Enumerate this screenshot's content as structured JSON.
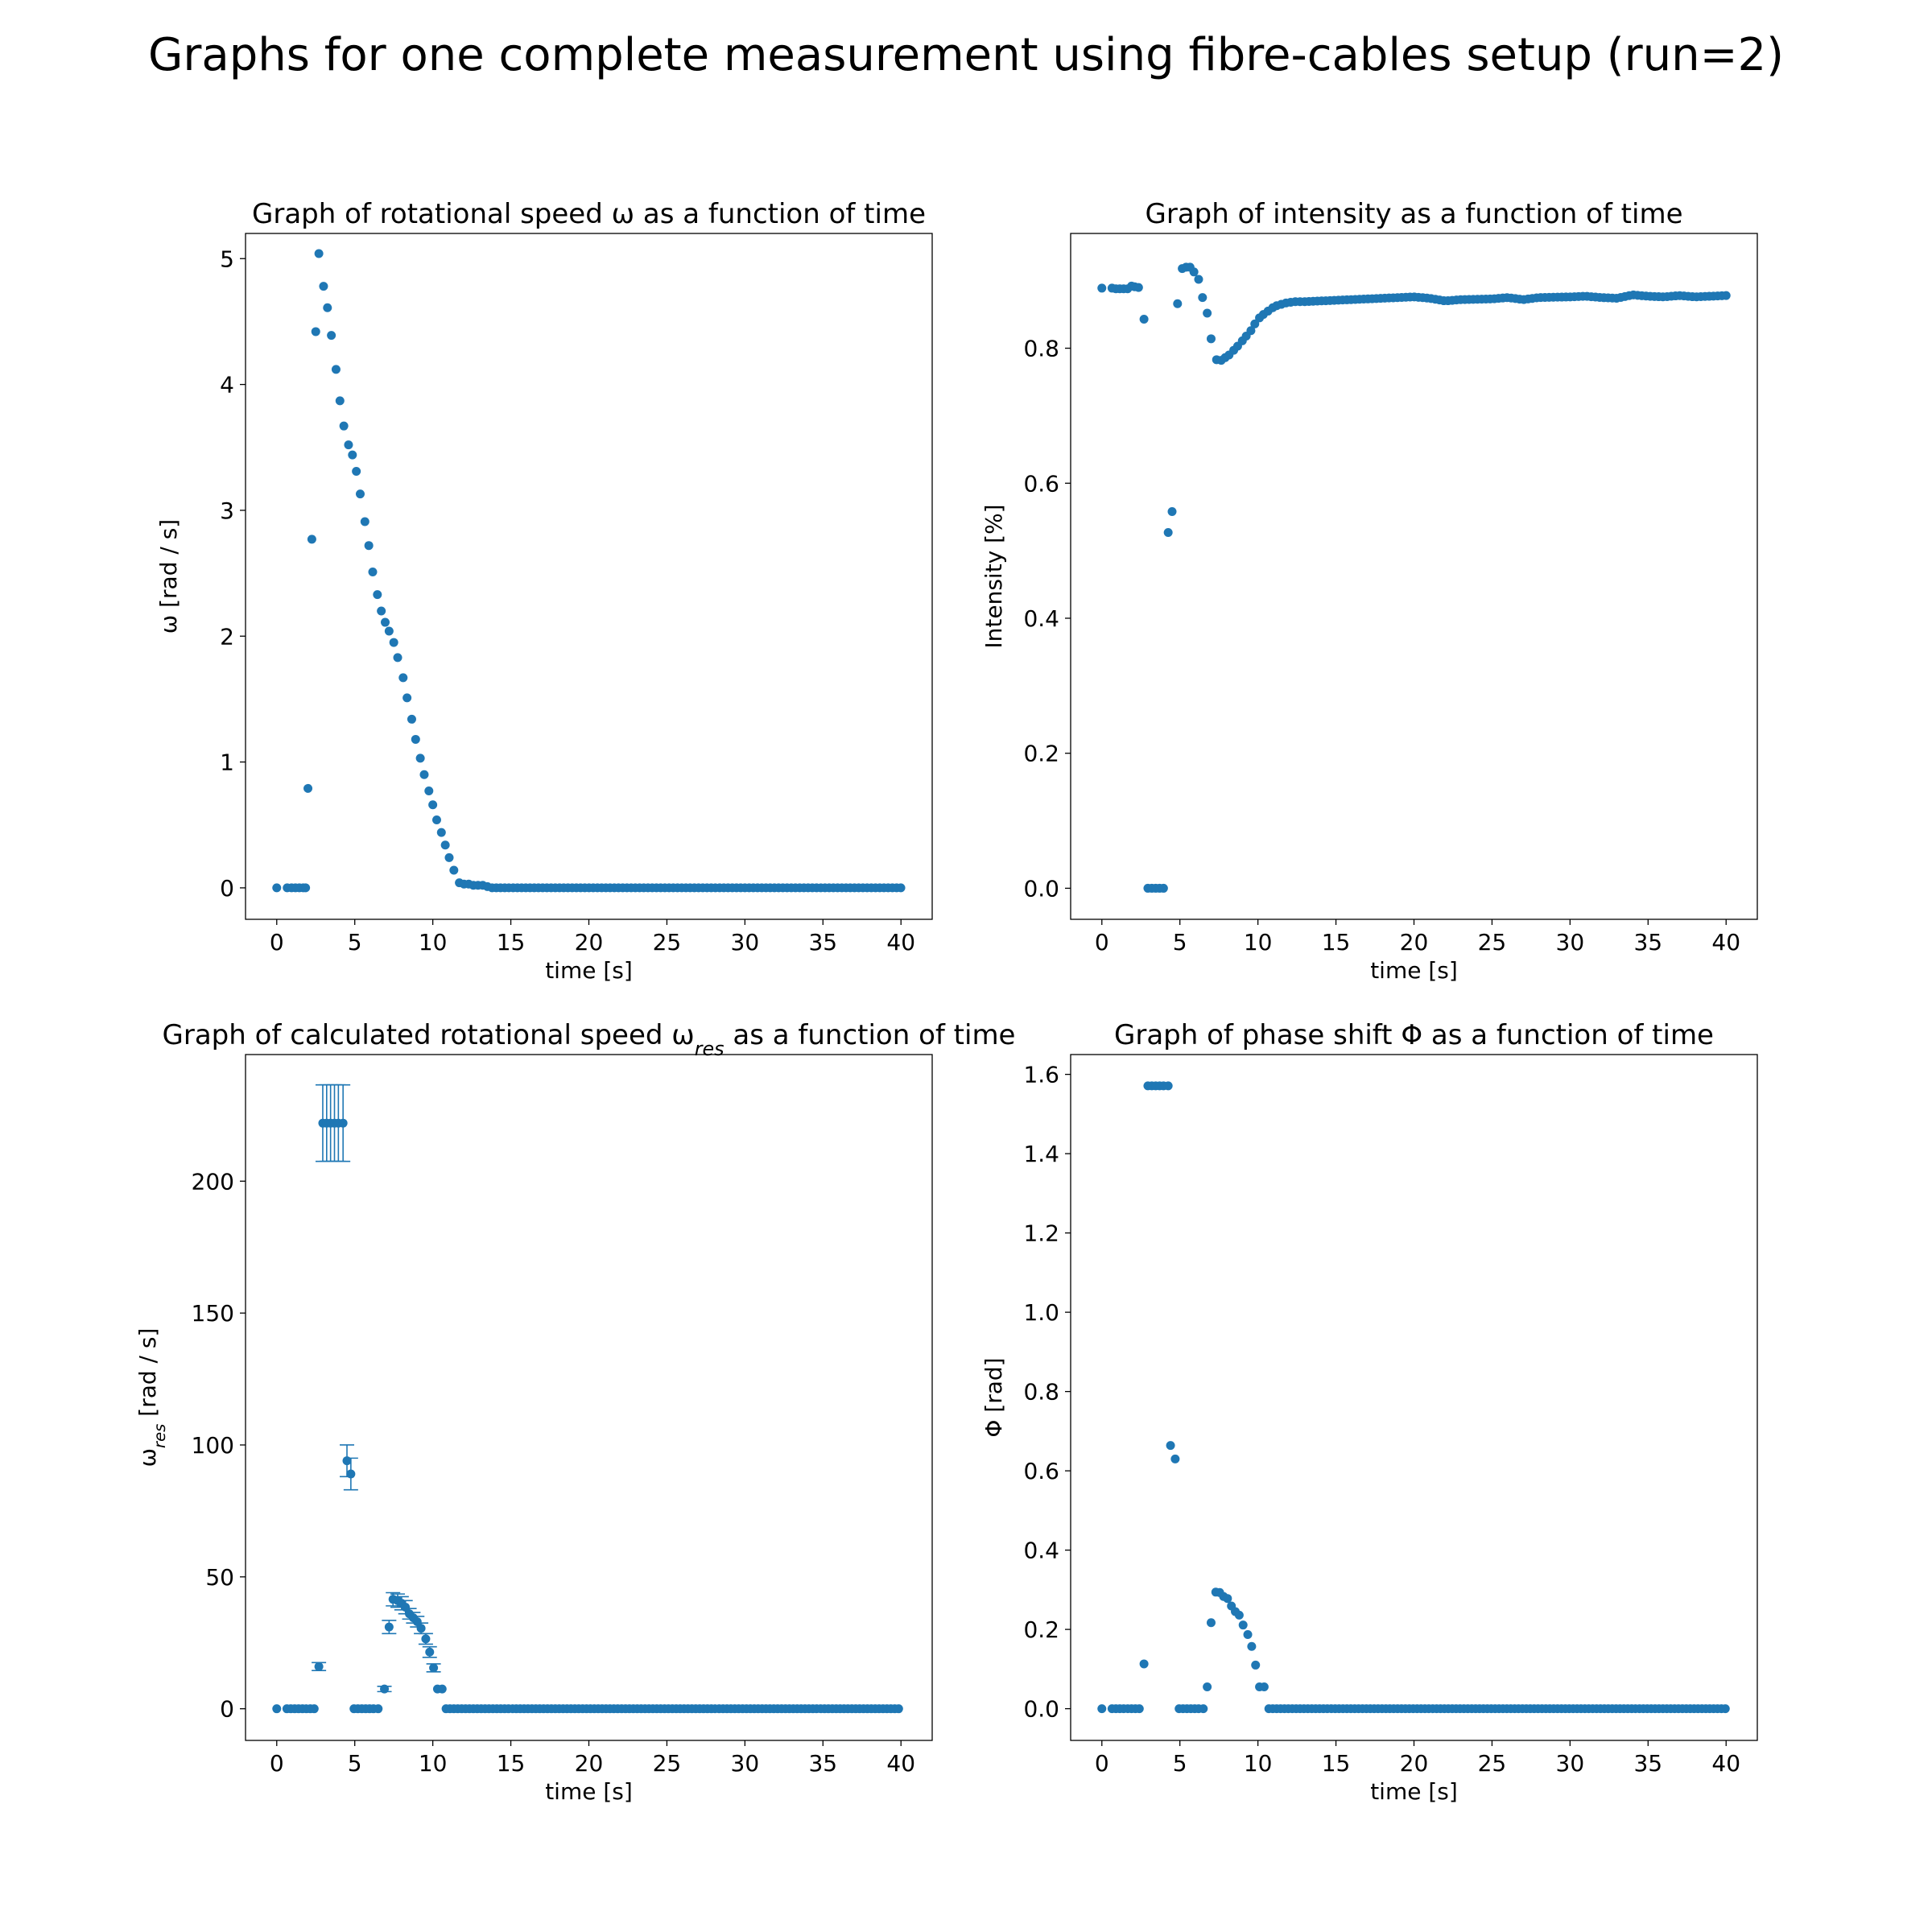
{
  "figure": {
    "suptitle": "Graphs for one complete measurement using fibre-cables setup (run=2)",
    "marker_color": "#1f77b4"
  },
  "chart_data": [
    {
      "type": "scatter",
      "title": "Graph of rotational speed ω as a function of time",
      "xlabel": "time [s]",
      "ylabel": "ω [rad / s]",
      "xlim": [
        -2,
        42
      ],
      "ylim": [
        -0.25,
        5.2
      ],
      "xticks": [
        0,
        5,
        10,
        15,
        20,
        25,
        30,
        35,
        40
      ],
      "yticks": [
        0,
        1,
        2,
        3,
        4,
        5
      ],
      "points": [
        [
          0.0,
          0.0
        ],
        [
          0.67,
          0.0
        ],
        [
          0.95,
          0.0
        ],
        [
          1.2,
          0.0
        ],
        [
          1.45,
          0.0
        ],
        [
          1.7,
          0.0
        ],
        [
          1.85,
          0.0
        ],
        [
          2.0,
          0.79
        ],
        [
          2.25,
          2.77
        ],
        [
          2.5,
          4.42
        ],
        [
          2.7,
          5.04
        ],
        [
          3.0,
          4.78
        ],
        [
          3.25,
          4.61
        ],
        [
          3.5,
          4.39
        ],
        [
          3.8,
          4.12
        ],
        [
          4.05,
          3.87
        ],
        [
          4.3,
          3.67
        ],
        [
          4.6,
          3.52
        ],
        [
          4.85,
          3.44
        ],
        [
          5.1,
          3.31
        ],
        [
          5.35,
          3.13
        ],
        [
          5.65,
          2.91
        ],
        [
          5.9,
          2.72
        ],
        [
          6.15,
          2.51
        ],
        [
          6.45,
          2.33
        ],
        [
          6.7,
          2.2
        ],
        [
          6.95,
          2.11
        ],
        [
          7.2,
          2.04
        ],
        [
          7.5,
          1.95
        ],
        [
          7.75,
          1.83
        ],
        [
          8.1,
          1.67
        ],
        [
          8.35,
          1.51
        ],
        [
          8.65,
          1.34
        ],
        [
          8.9,
          1.18
        ],
        [
          9.2,
          1.03
        ],
        [
          9.45,
          0.9
        ],
        [
          9.75,
          0.77
        ],
        [
          10.0,
          0.66
        ],
        [
          10.25,
          0.54
        ],
        [
          10.55,
          0.44
        ],
        [
          10.8,
          0.34
        ],
        [
          11.05,
          0.24
        ],
        [
          11.35,
          0.14
        ],
        [
          11.7,
          0.04
        ],
        [
          12.0,
          0.03
        ],
        [
          12.3,
          0.03
        ],
        [
          12.6,
          0.02
        ],
        [
          12.9,
          0.02
        ],
        [
          13.2,
          0.02
        ],
        [
          13.5,
          0.01
        ]
      ],
      "tail": {
        "from": 13.8,
        "to": 40,
        "step": 0.27,
        "value": 0.0
      }
    },
    {
      "type": "scatter",
      "title": "Graph of intensity as a function of time",
      "xlabel": "time [s]",
      "ylabel": "Intensity [%]",
      "xlim": [
        -2,
        42
      ],
      "ylim": [
        -0.046,
        0.97
      ],
      "xticks": [
        0,
        5,
        10,
        15,
        20,
        25,
        30,
        35,
        40
      ],
      "yticks": [
        "0.0",
        "0.2",
        "0.4",
        "0.6",
        "0.8"
      ],
      "points": [
        [
          0.0,
          0.889
        ],
        [
          0.65,
          0.889
        ],
        [
          0.9,
          0.888
        ],
        [
          1.15,
          0.888
        ],
        [
          1.4,
          0.888
        ],
        [
          1.65,
          0.888
        ],
        [
          1.9,
          0.892
        ],
        [
          2.1,
          0.891
        ],
        [
          2.35,
          0.89
        ],
        [
          2.7,
          0.843
        ],
        [
          2.95,
          0.0
        ],
        [
          3.2,
          0.0
        ],
        [
          3.45,
          0.0
        ],
        [
          3.7,
          0.0
        ],
        [
          3.95,
          0.0
        ],
        [
          4.25,
          0.527
        ],
        [
          4.5,
          0.558
        ],
        [
          4.85,
          0.866
        ],
        [
          5.15,
          0.918
        ],
        [
          5.4,
          0.92
        ],
        [
          5.65,
          0.92
        ],
        [
          5.9,
          0.913
        ],
        [
          6.2,
          0.902
        ],
        [
          6.45,
          0.875
        ],
        [
          6.75,
          0.852
        ],
        [
          7.0,
          0.814
        ],
        [
          7.35,
          0.783
        ],
        [
          7.65,
          0.782
        ],
        [
          7.9,
          0.786
        ],
        [
          8.15,
          0.79
        ],
        [
          8.45,
          0.797
        ],
        [
          8.7,
          0.803
        ],
        [
          9.0,
          0.811
        ],
        [
          9.25,
          0.818
        ],
        [
          9.55,
          0.826
        ],
        [
          9.8,
          0.836
        ],
        [
          10.1,
          0.845
        ],
        [
          10.35,
          0.85
        ],
        [
          10.65,
          0.855
        ],
        [
          10.95,
          0.86
        ],
        [
          11.2,
          0.863
        ],
        [
          11.5,
          0.865
        ],
        [
          11.8,
          0.867
        ],
        [
          12.1,
          0.868
        ],
        [
          12.4,
          0.869
        ],
        [
          12.7,
          0.869
        ]
      ],
      "tail_points": [
        [
          13,
          0.869
        ],
        [
          15,
          0.871
        ],
        [
          17,
          0.873
        ],
        [
          19,
          0.875
        ],
        [
          20,
          0.876
        ],
        [
          21,
          0.874
        ],
        [
          22,
          0.87
        ],
        [
          23,
          0.872
        ],
        [
          25,
          0.873
        ],
        [
          26,
          0.875
        ],
        [
          27,
          0.872
        ],
        [
          28,
          0.875
        ],
        [
          30,
          0.876
        ],
        [
          31,
          0.877
        ],
        [
          32,
          0.875
        ],
        [
          33,
          0.874
        ],
        [
          34,
          0.879
        ],
        [
          35,
          0.877
        ],
        [
          36,
          0.876
        ],
        [
          37,
          0.878
        ],
        [
          38,
          0.876
        ],
        [
          39,
          0.877
        ],
        [
          40,
          0.878
        ]
      ],
      "tail_step": 0.27
    },
    {
      "type": "scatter",
      "title": "Graph of calculated rotational speed ω",
      "title_sub": "res",
      "title_rest": " as a function of time",
      "xlabel": "time [s]",
      "ylabel": "ω",
      "ylabel_sub": "res",
      "ylabel_rest": " [rad / s]",
      "xlim": [
        -2,
        42
      ],
      "ylim": [
        -12,
        248
      ],
      "xticks": [
        0,
        5,
        10,
        15,
        20,
        25,
        30,
        35,
        40
      ],
      "yticks": [
        0,
        50,
        100,
        150,
        200
      ],
      "points": [
        [
          0.0,
          0.0
        ],
        [
          0.65,
          0.0
        ],
        [
          0.9,
          0.0
        ],
        [
          1.15,
          0.0
        ],
        [
          1.4,
          0.0
        ],
        [
          1.65,
          0.0
        ],
        [
          1.9,
          0.0
        ],
        [
          2.15,
          0.0
        ],
        [
          2.4,
          0.0
        ],
        [
          2.7,
          16.0
        ],
        [
          2.95,
          222.0
        ],
        [
          3.2,
          222.0
        ],
        [
          3.45,
          222.0
        ],
        [
          3.7,
          222.0
        ],
        [
          3.95,
          222.0
        ],
        [
          4.25,
          222.0
        ],
        [
          4.5,
          94.0
        ],
        [
          4.75,
          89.0
        ],
        [
          4.95,
          0.0
        ],
        [
          5.2,
          0.0
        ],
        [
          5.45,
          0.0
        ],
        [
          5.7,
          0.0
        ],
        [
          5.95,
          0.0
        ],
        [
          6.2,
          0.0
        ],
        [
          6.5,
          0.0
        ],
        [
          6.9,
          7.5
        ],
        [
          7.2,
          31.0
        ],
        [
          7.45,
          41.5
        ],
        [
          7.75,
          41.0
        ],
        [
          8.0,
          40.0
        ],
        [
          8.25,
          38.5
        ],
        [
          8.5,
          36.0
        ],
        [
          8.75,
          34.5
        ],
        [
          9.0,
          33.0
        ],
        [
          9.25,
          30.5
        ],
        [
          9.55,
          26.5
        ],
        [
          9.8,
          21.5
        ],
        [
          10.05,
          15.5
        ],
        [
          10.3,
          7.5
        ],
        [
          10.6,
          7.5
        ],
        [
          10.85,
          0.0
        ]
      ],
      "errors": [
        [
          2.95,
          14.5
        ],
        [
          3.2,
          14.5
        ],
        [
          3.45,
          14.5
        ],
        [
          3.7,
          14.5
        ],
        [
          3.95,
          14.5
        ],
        [
          4.25,
          14.5
        ],
        [
          4.5,
          6.0
        ],
        [
          4.75,
          6.0
        ],
        [
          2.7,
          1.5
        ],
        [
          7.2,
          2.5
        ],
        [
          7.45,
          2.5
        ],
        [
          7.75,
          2.5
        ],
        [
          8.0,
          2.5
        ],
        [
          8.25,
          2.5
        ],
        [
          8.5,
          2.0
        ],
        [
          8.75,
          2.0
        ],
        [
          9.0,
          2.0
        ],
        [
          9.25,
          2.0
        ],
        [
          9.55,
          2.0
        ],
        [
          9.8,
          2.0
        ],
        [
          10.05,
          1.5
        ],
        [
          6.9,
          1.0
        ]
      ],
      "tail": {
        "from": 11.1,
        "to": 40,
        "step": 0.25,
        "value": 0.0
      }
    },
    {
      "type": "scatter",
      "title": "Graph of phase shift Φ as a function of time",
      "xlabel": "time [s]",
      "ylabel": "Φ [rad]",
      "xlim": [
        -2,
        42
      ],
      "ylim": [
        -0.08,
        1.65
      ],
      "xticks": [
        0,
        5,
        10,
        15,
        20,
        25,
        30,
        35,
        40
      ],
      "yticks": [
        "0.0",
        "0.2",
        "0.4",
        "0.6",
        "0.8",
        "1.0",
        "1.2",
        "1.4",
        "1.6"
      ],
      "points": [
        [
          0.0,
          0.0
        ],
        [
          0.65,
          0.0
        ],
        [
          0.9,
          0.0
        ],
        [
          1.15,
          0.0
        ],
        [
          1.4,
          0.0
        ],
        [
          1.65,
          0.0
        ],
        [
          1.9,
          0.0
        ],
        [
          2.15,
          0.0
        ],
        [
          2.4,
          0.0
        ],
        [
          2.7,
          0.113
        ],
        [
          2.95,
          1.571
        ],
        [
          3.2,
          1.571
        ],
        [
          3.45,
          1.571
        ],
        [
          3.7,
          1.571
        ],
        [
          3.95,
          1.571
        ],
        [
          4.25,
          1.571
        ],
        [
          4.4,
          0.664
        ],
        [
          4.7,
          0.63
        ],
        [
          4.95,
          0.0
        ],
        [
          5.2,
          0.0
        ],
        [
          5.45,
          0.0
        ],
        [
          5.7,
          0.0
        ],
        [
          5.95,
          0.0
        ],
        [
          6.2,
          0.0
        ],
        [
          6.5,
          0.0
        ],
        [
          6.75,
          0.055
        ],
        [
          7.0,
          0.217
        ],
        [
          7.3,
          0.294
        ],
        [
          7.55,
          0.293
        ],
        [
          7.8,
          0.283
        ],
        [
          8.05,
          0.278
        ],
        [
          8.3,
          0.259
        ],
        [
          8.55,
          0.245
        ],
        [
          8.8,
          0.236
        ],
        [
          9.05,
          0.211
        ],
        [
          9.35,
          0.187
        ],
        [
          9.6,
          0.157
        ],
        [
          9.85,
          0.11
        ],
        [
          10.1,
          0.055
        ],
        [
          10.4,
          0.055
        ],
        [
          10.7,
          0.0
        ]
      ],
      "tail": {
        "from": 10.95,
        "to": 40,
        "step": 0.25,
        "value": 0.0
      }
    }
  ]
}
